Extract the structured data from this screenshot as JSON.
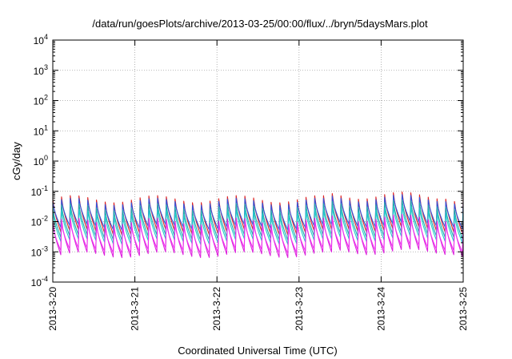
{
  "chart_data": {
    "type": "line",
    "title": "/data/run/goesPlots/archive/2013-03-25/00:00/flux/../bryn/5daysMars.plot",
    "xlabel": "Coordinated Universal Time (UTC)",
    "ylabel": "cGy/day",
    "yscale": "log",
    "ylim": [
      0.0001,
      10000
    ],
    "xlim": [
      "2013-03-20",
      "2013-03-25"
    ],
    "y_ticks": [
      {
        "value": 0.0001,
        "base": "10",
        "exp": "-4"
      },
      {
        "value": 0.001,
        "base": "10",
        "exp": "-3"
      },
      {
        "value": 0.01,
        "base": "10",
        "exp": "-2"
      },
      {
        "value": 0.1,
        "base": "10",
        "exp": "-1"
      },
      {
        "value": 1,
        "base": "10",
        "exp": "0"
      },
      {
        "value": 10,
        "base": "10",
        "exp": "1"
      },
      {
        "value": 100,
        "base": "10",
        "exp": "2"
      },
      {
        "value": 1000,
        "base": "10",
        "exp": "3"
      },
      {
        "value": 10000,
        "base": "10",
        "exp": "4"
      }
    ],
    "x_ticks": [
      "2013-3-20",
      "2013-3-21",
      "2013-3-22",
      "2013-3-23",
      "2013-3-24",
      "2013-3-25"
    ],
    "grid": true,
    "legend": "none",
    "cycles_per_day": 9.4,
    "series": [
      {
        "color": "#dd2222",
        "peak_dose": 0.055,
        "min_dose": 0.0045
      },
      {
        "color": "#3355dd",
        "peak_dose": 0.045,
        "min_dose": 0.0065
      },
      {
        "color": "#22aaaa",
        "peak_dose": 0.03,
        "min_dose": 0.003
      },
      {
        "color": "#22cccc",
        "peak_dose": 0.02,
        "min_dose": 0.0022
      },
      {
        "color": "#dd22dd",
        "peak_dose": 0.01,
        "min_dose": 0.0008
      },
      {
        "color": "#ee33ee",
        "peak_dose": 0.008,
        "min_dose": 0.0011
      }
    ]
  }
}
